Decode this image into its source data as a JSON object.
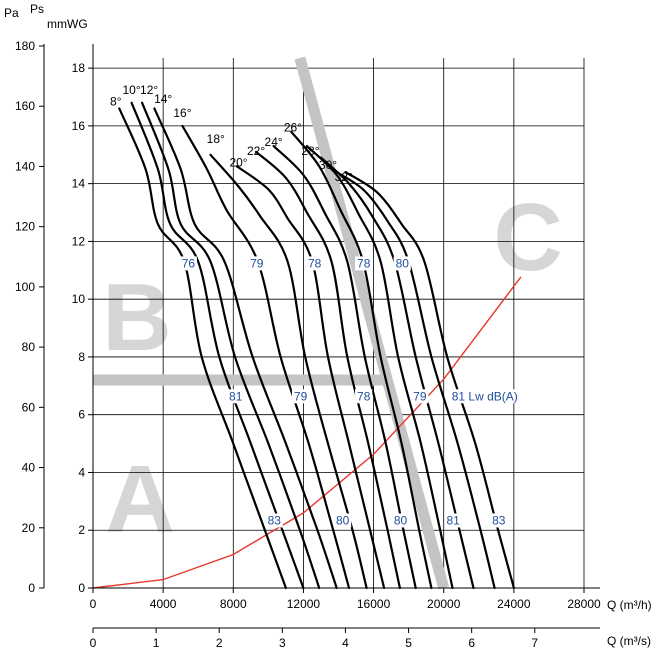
{
  "chart_data": {
    "type": "line",
    "units": {
      "pressure_pa": "Pa",
      "pressure_label": "Ps",
      "pressure_mm": "mmWG",
      "flow_h": "Q (m³/h)",
      "flow_s": "Q (m³/s)"
    },
    "axes": {
      "x_m3h": {
        "min": 0,
        "max": 28000,
        "ticks": [
          "0",
          "4000",
          "8000",
          "12000",
          "16000",
          "20000",
          "24000",
          "28000"
        ]
      },
      "x_m3s": {
        "min": 0,
        "max": 7.78,
        "ticks": [
          "0",
          "1",
          "2",
          "3",
          "4",
          "5",
          "6",
          "7"
        ]
      },
      "y_pa": {
        "min": 0,
        "max": 180,
        "ticks": [
          "0",
          "20",
          "40",
          "60",
          "80",
          "100",
          "120",
          "140",
          "160",
          "180"
        ]
      },
      "y_mmwg": {
        "min": 0,
        "max": 18.35,
        "ticks": [
          "0",
          "2",
          "4",
          "6",
          "8",
          "10",
          "12",
          "14",
          "16",
          "18"
        ]
      }
    },
    "grid": true,
    "zones": [
      {
        "label": "A",
        "color": "#d6d6d6"
      },
      {
        "label": "B",
        "color": "#d6d6d6"
      },
      {
        "label": "C",
        "color": "#d6d6d6"
      }
    ],
    "series": [
      {
        "name": "8°",
        "points": [
          [
            1500,
            16.6
          ],
          [
            3000,
            14.5
          ],
          [
            3700,
            12.6
          ],
          [
            5200,
            11.3
          ],
          [
            6200,
            8.0
          ],
          [
            8000,
            5.0
          ],
          [
            9800,
            2.0
          ],
          [
            11000,
            0
          ]
        ]
      },
      {
        "name": "10°",
        "points": [
          [
            2200,
            16.8
          ],
          [
            3700,
            14.5
          ],
          [
            4400,
            12.6
          ],
          [
            6000,
            11.3
          ],
          [
            7200,
            8.0
          ],
          [
            9000,
            5.0
          ],
          [
            10800,
            2.0
          ],
          [
            12000,
            0
          ]
        ]
      },
      {
        "name": "12°",
        "points": [
          [
            2800,
            16.8
          ],
          [
            4300,
            14.5
          ],
          [
            5000,
            12.6
          ],
          [
            6700,
            11.3
          ],
          [
            8100,
            8.0
          ],
          [
            10000,
            5.0
          ],
          [
            11800,
            2.0
          ],
          [
            12900,
            0
          ]
        ]
      },
      {
        "name": "14°",
        "points": [
          [
            3500,
            16.6
          ],
          [
            5000,
            14.5
          ],
          [
            5800,
            12.6
          ],
          [
            7500,
            11.3
          ],
          [
            9100,
            8.0
          ],
          [
            11000,
            5.0
          ],
          [
            12800,
            2.0
          ],
          [
            13900,
            0
          ]
        ]
      },
      {
        "name": "16°",
        "points": [
          [
            5100,
            16.0
          ],
          [
            6500,
            14.5
          ],
          [
            7600,
            13.1
          ],
          [
            9400,
            11.3
          ],
          [
            10700,
            8.0
          ],
          [
            12300,
            5.0
          ],
          [
            13700,
            2.0
          ],
          [
            14600,
            0
          ]
        ]
      },
      {
        "name": "18°",
        "points": [
          [
            6700,
            15.0
          ],
          [
            8300,
            13.9
          ],
          [
            9500,
            12.9
          ],
          [
            11100,
            11.3
          ],
          [
            12100,
            8.0
          ],
          [
            13400,
            5.0
          ],
          [
            14800,
            2.0
          ],
          [
            15600,
            0
          ]
        ]
      },
      {
        "name": "20°",
        "points": [
          [
            8200,
            14.6
          ],
          [
            10000,
            13.8
          ],
          [
            11100,
            12.8
          ],
          [
            12500,
            11.3
          ],
          [
            13400,
            8.0
          ],
          [
            14600,
            5.0
          ],
          [
            15800,
            2.0
          ],
          [
            16600,
            0
          ]
        ]
      },
      {
        "name": "22°",
        "points": [
          [
            9300,
            15.1
          ],
          [
            11000,
            14.2
          ],
          [
            12200,
            13.0
          ],
          [
            13600,
            11.3
          ],
          [
            14500,
            8.0
          ],
          [
            15700,
            5.0
          ],
          [
            16800,
            2.0
          ],
          [
            17500,
            0
          ]
        ]
      },
      {
        "name": "24°",
        "points": [
          [
            10300,
            15.3
          ],
          [
            12000,
            14.3
          ],
          [
            13200,
            13.0
          ],
          [
            14500,
            11.3
          ],
          [
            15500,
            8.0
          ],
          [
            16700,
            5.0
          ],
          [
            17700,
            2.0
          ],
          [
            18400,
            0
          ]
        ]
      },
      {
        "name": "26°",
        "points": [
          [
            11300,
            15.8
          ],
          [
            12900,
            14.6
          ],
          [
            14100,
            13.1
          ],
          [
            15400,
            11.3
          ],
          [
            16400,
            8.0
          ],
          [
            17600,
            5.0
          ],
          [
            18600,
            2.0
          ],
          [
            19300,
            0
          ]
        ]
      },
      {
        "name": "28°",
        "points": [
          [
            12200,
            15.3
          ],
          [
            13900,
            14.3
          ],
          [
            15100,
            13.0
          ],
          [
            16400,
            11.3
          ],
          [
            17400,
            8.0
          ],
          [
            18700,
            5.0
          ],
          [
            19800,
            2.0
          ],
          [
            20500,
            0
          ]
        ]
      },
      {
        "name": "30°",
        "points": [
          [
            13000,
            14.9
          ],
          [
            14600,
            14.0
          ],
          [
            15900,
            12.9
          ],
          [
            17200,
            11.3
          ],
          [
            18400,
            8.0
          ],
          [
            19700,
            5.0
          ],
          [
            20900,
            2.0
          ],
          [
            21700,
            0
          ]
        ]
      },
      {
        "name": "32°",
        "points": [
          [
            13600,
            14.5
          ],
          [
            15400,
            13.8
          ],
          [
            16800,
            12.7
          ],
          [
            18000,
            11.3
          ],
          [
            19300,
            8.0
          ],
          [
            20800,
            5.0
          ],
          [
            22100,
            2.0
          ],
          [
            22900,
            0
          ]
        ]
      },
      {
        "name": "",
        "points": [
          [
            14400,
            14.4
          ],
          [
            16200,
            13.7
          ],
          [
            17600,
            12.6
          ],
          [
            18900,
            11.3
          ],
          [
            20200,
            8.0
          ],
          [
            21800,
            5.0
          ],
          [
            23100,
            2.0
          ],
          [
            24000,
            0
          ]
        ]
      }
    ],
    "system_curve": {
      "color": "#e8372c",
      "points": [
        [
          0,
          0
        ],
        [
          4000,
          0.29
        ],
        [
          8000,
          1.16
        ],
        [
          12000,
          2.6
        ],
        [
          16000,
          4.63
        ],
        [
          20000,
          7.23
        ],
        [
          24400,
          10.77
        ]
      ]
    },
    "gray_lines": [
      {
        "points": [
          [
            0,
            7.2
          ],
          [
            16800,
            7.2
          ]
        ]
      },
      {
        "points": [
          [
            11800,
            18.35
          ],
          [
            20000,
            0
          ]
        ]
      }
    ],
    "angle_labels": [
      {
        "text": "8°",
        "x": 1300,
        "y": 16.7
      },
      {
        "text": "10°",
        "x": 2200,
        "y": 17.1
      },
      {
        "text": "12°",
        "x": 3200,
        "y": 17.1
      },
      {
        "text": "14°",
        "x": 4000,
        "y": 16.8
      },
      {
        "text": "16°",
        "x": 5100,
        "y": 16.3
      },
      {
        "text": "18°",
        "x": 7000,
        "y": 15.4
      },
      {
        "text": "20°",
        "x": 8300,
        "y": 14.6
      },
      {
        "text": "22°",
        "x": 9300,
        "y": 15.0
      },
      {
        "text": "24°",
        "x": 10300,
        "y": 15.3
      },
      {
        "text": "26°",
        "x": 11400,
        "y": 15.8
      },
      {
        "text": "28°",
        "x": 12400,
        "y": 15.0
      },
      {
        "text": "30°",
        "x": 13400,
        "y": 14.5
      },
      {
        "text": "32°",
        "x": 14300,
        "y": 14.1
      }
    ],
    "noise_labels": [
      {
        "text": "76",
        "x": 5400,
        "y": 11.1
      },
      {
        "text": "79",
        "x": 9300,
        "y": 11.1
      },
      {
        "text": "78",
        "x": 12600,
        "y": 11.1
      },
      {
        "text": "78",
        "x": 15400,
        "y": 11.1
      },
      {
        "text": "80",
        "x": 17600,
        "y": 11.1
      },
      {
        "text": "81",
        "x": 8100,
        "y": 6.5
      },
      {
        "text": "79",
        "x": 11800,
        "y": 6.5
      },
      {
        "text": "78",
        "x": 15400,
        "y": 6.5
      },
      {
        "text": "79",
        "x": 18600,
        "y": 6.5
      },
      {
        "text": "81 Lw dB(A)",
        "x": 20800,
        "y": 6.5
      },
      {
        "text": "83",
        "x": 10300,
        "y": 2.2
      },
      {
        "text": "80",
        "x": 14200,
        "y": 2.2
      },
      {
        "text": "80",
        "x": 17500,
        "y": 2.2
      },
      {
        "text": "81",
        "x": 20500,
        "y": 2.2
      },
      {
        "text": "83",
        "x": 23100,
        "y": 2.2
      }
    ]
  }
}
